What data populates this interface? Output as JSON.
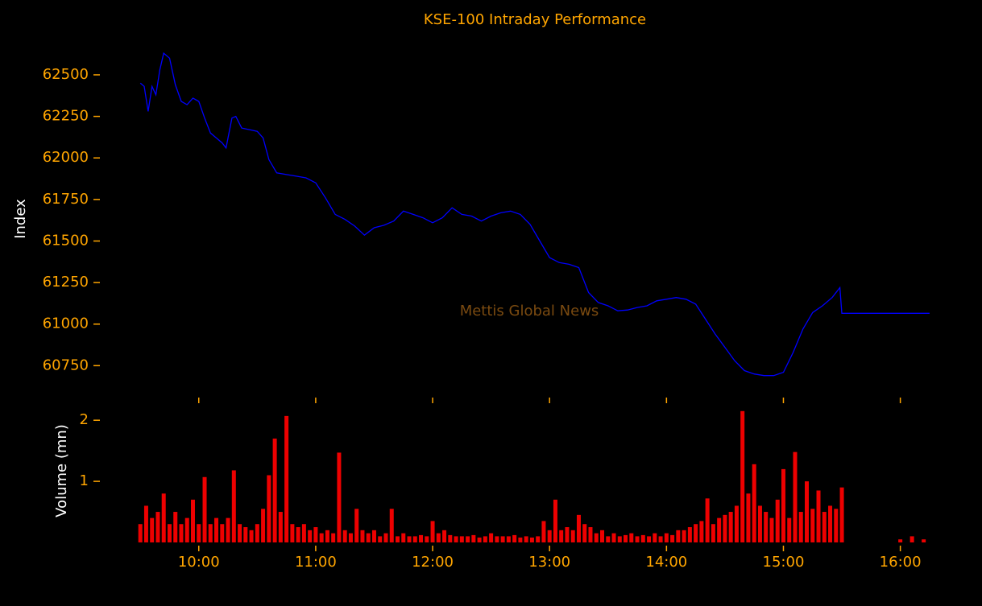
{
  "chart_data": [
    {
      "type": "line",
      "title": "KSE-100 Intraday Performance",
      "ylabel": "Index",
      "annotation": "Mettis Global News",
      "xlim": [
        "09:20",
        "16:20"
      ],
      "ylim": [
        60650,
        62650
      ],
      "yticks": [
        60750,
        61000,
        61250,
        61500,
        61750,
        62000,
        62250,
        62500
      ],
      "series": [
        {
          "name": "Index",
          "color": "#0000ff",
          "x": [
            "09:30",
            "09:32",
            "09:34",
            "09:36",
            "09:38",
            "09:40",
            "09:42",
            "09:45",
            "09:48",
            "09:51",
            "09:54",
            "09:57",
            "10:00",
            "10:03",
            "10:06",
            "10:09",
            "10:12",
            "10:14",
            "10:17",
            "10:19",
            "10:22",
            "10:26",
            "10:30",
            "10:33",
            "10:36",
            "10:40",
            "10:45",
            "10:50",
            "10:55",
            "11:00",
            "11:05",
            "11:10",
            "11:15",
            "11:20",
            "11:25",
            "11:30",
            "11:35",
            "11:40",
            "11:45",
            "11:50",
            "11:55",
            "12:00",
            "12:05",
            "12:10",
            "12:15",
            "12:20",
            "12:25",
            "12:30",
            "12:35",
            "12:40",
            "12:45",
            "12:50",
            "12:55",
            "13:00",
            "13:05",
            "13:10",
            "13:15",
            "13:20",
            "13:25",
            "13:30",
            "13:35",
            "13:40",
            "13:45",
            "13:50",
            "13:55",
            "14:00",
            "14:05",
            "14:10",
            "14:15",
            "14:20",
            "14:25",
            "14:30",
            "14:35",
            "14:40",
            "14:45",
            "14:50",
            "14:55",
            "15:00",
            "15:05",
            "15:10",
            "15:15",
            "15:20",
            "15:25",
            "15:29",
            "15:30",
            "16:15"
          ],
          "values": [
            62450,
            62430,
            62280,
            62430,
            62380,
            62530,
            62630,
            62600,
            62440,
            62340,
            62320,
            62360,
            62340,
            62240,
            62150,
            62120,
            62090,
            62060,
            62240,
            62250,
            62180,
            62170,
            62160,
            62120,
            61990,
            61910,
            61900,
            61890,
            61880,
            61850,
            61760,
            61660,
            61630,
            61590,
            61535,
            61580,
            61595,
            61620,
            61680,
            61660,
            61640,
            61610,
            61640,
            61700,
            61660,
            61650,
            61620,
            61650,
            61670,
            61680,
            61660,
            61600,
            61500,
            61400,
            61370,
            61360,
            61340,
            61190,
            61130,
            61110,
            61080,
            61085,
            61100,
            61110,
            61140,
            61150,
            61160,
            61150,
            61120,
            61030,
            60940,
            60860,
            60780,
            60720,
            60700,
            60690,
            60690,
            60710,
            60830,
            60970,
            61070,
            61110,
            61160,
            61220,
            61065,
            61065
          ]
        }
      ]
    },
    {
      "type": "bar",
      "ylabel": "Volume (mn)",
      "color": "#ee0000",
      "xlim": [
        "09:20",
        "16:20"
      ],
      "ylim": [
        0,
        2.2
      ],
      "yticks": [
        1,
        2
      ],
      "xticks": [
        "10:00",
        "11:00",
        "12:00",
        "13:00",
        "14:00",
        "15:00",
        "16:00"
      ],
      "x": [
        "09:30",
        "09:33",
        "09:36",
        "09:39",
        "09:42",
        "09:45",
        "09:48",
        "09:51",
        "09:54",
        "09:57",
        "10:00",
        "10:03",
        "10:06",
        "10:09",
        "10:12",
        "10:15",
        "10:18",
        "10:21",
        "10:24",
        "10:27",
        "10:30",
        "10:33",
        "10:36",
        "10:39",
        "10:42",
        "10:45",
        "10:48",
        "10:51",
        "10:54",
        "10:57",
        "11:00",
        "11:03",
        "11:06",
        "11:09",
        "11:12",
        "11:15",
        "11:18",
        "11:21",
        "11:24",
        "11:27",
        "11:30",
        "11:33",
        "11:36",
        "11:39",
        "11:42",
        "11:45",
        "11:48",
        "11:51",
        "11:54",
        "11:57",
        "12:00",
        "12:03",
        "12:06",
        "12:09",
        "12:12",
        "12:15",
        "12:18",
        "12:21",
        "12:24",
        "12:27",
        "12:30",
        "12:33",
        "12:36",
        "12:39",
        "12:42",
        "12:45",
        "12:48",
        "12:51",
        "12:54",
        "12:57",
        "13:00",
        "13:03",
        "13:06",
        "13:09",
        "13:12",
        "13:15",
        "13:18",
        "13:21",
        "13:24",
        "13:27",
        "13:30",
        "13:33",
        "13:36",
        "13:39",
        "13:42",
        "13:45",
        "13:48",
        "13:51",
        "13:54",
        "13:57",
        "14:00",
        "14:03",
        "14:06",
        "14:09",
        "14:12",
        "14:15",
        "14:18",
        "14:21",
        "14:24",
        "14:27",
        "14:30",
        "14:33",
        "14:36",
        "14:39",
        "14:42",
        "14:45",
        "14:48",
        "14:51",
        "14:54",
        "14:57",
        "15:00",
        "15:03",
        "15:06",
        "15:09",
        "15:12",
        "15:15",
        "15:18",
        "15:21",
        "15:24",
        "15:27",
        "15:30",
        "16:00",
        "16:06",
        "16:12"
      ],
      "values": [
        0.3,
        0.6,
        0.4,
        0.5,
        0.8,
        0.3,
        0.5,
        0.3,
        0.4,
        0.7,
        0.3,
        1.07,
        0.3,
        0.4,
        0.3,
        0.4,
        1.18,
        0.3,
        0.25,
        0.2,
        0.3,
        0.55,
        1.1,
        1.7,
        0.5,
        2.07,
        0.3,
        0.25,
        0.3,
        0.2,
        0.25,
        0.15,
        0.2,
        0.15,
        1.47,
        0.2,
        0.15,
        0.55,
        0.2,
        0.15,
        0.2,
        0.1,
        0.15,
        0.55,
        0.1,
        0.15,
        0.1,
        0.1,
        0.12,
        0.1,
        0.35,
        0.15,
        0.2,
        0.12,
        0.1,
        0.1,
        0.1,
        0.12,
        0.08,
        0.1,
        0.15,
        0.1,
        0.1,
        0.1,
        0.12,
        0.08,
        0.1,
        0.08,
        0.1,
        0.35,
        0.2,
        0.7,
        0.2,
        0.25,
        0.2,
        0.45,
        0.3,
        0.25,
        0.15,
        0.2,
        0.1,
        0.15,
        0.1,
        0.12,
        0.15,
        0.1,
        0.12,
        0.1,
        0.15,
        0.1,
        0.15,
        0.12,
        0.2,
        0.2,
        0.25,
        0.3,
        0.35,
        0.72,
        0.3,
        0.4,
        0.45,
        0.5,
        0.6,
        2.15,
        0.8,
        1.28,
        0.6,
        0.5,
        0.4,
        0.7,
        1.2,
        0.4,
        1.48,
        0.5,
        1.0,
        0.55,
        0.85,
        0.5,
        0.6,
        0.55,
        0.9,
        0.05,
        0.1,
        0.05
      ]
    }
  ]
}
